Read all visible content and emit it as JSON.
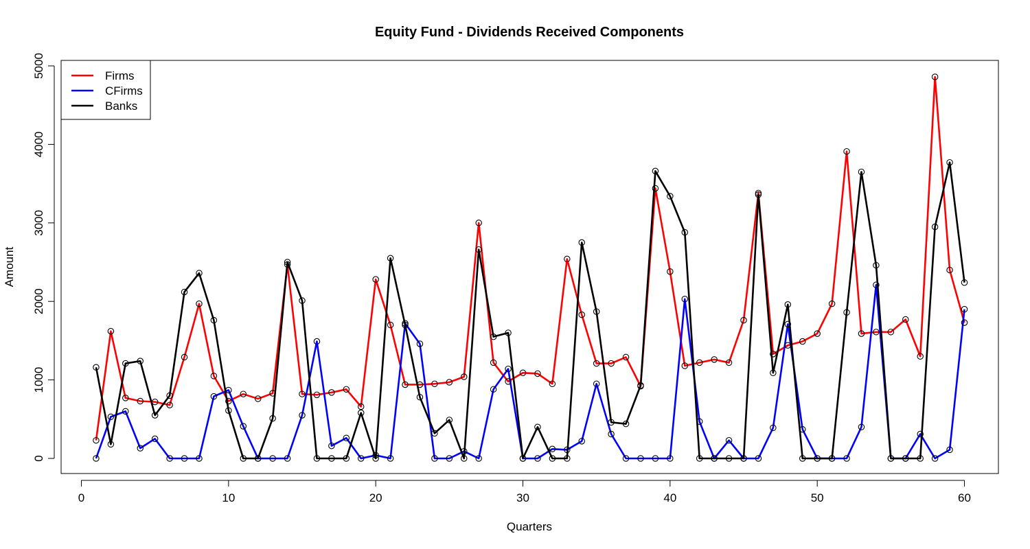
{
  "chart_data": {
    "type": "line",
    "title": "Equity Fund - Dividends Received Components",
    "xlabel": "Quarters",
    "ylabel": "Amount",
    "xlim": [
      0,
      62
    ],
    "ylim": [
      -200,
      5100
    ],
    "xticks": [
      0,
      10,
      20,
      30,
      40,
      50,
      60
    ],
    "yticks": [
      0,
      1000,
      2000,
      3000,
      4000,
      5000
    ],
    "grid": false,
    "legend_position": "top-left",
    "x": [
      1,
      2,
      3,
      4,
      5,
      6,
      7,
      8,
      9,
      10,
      11,
      12,
      13,
      14,
      15,
      16,
      17,
      18,
      19,
      20,
      21,
      22,
      23,
      24,
      25,
      26,
      27,
      28,
      29,
      30,
      31,
      32,
      33,
      34,
      35,
      36,
      37,
      38,
      39,
      40,
      41,
      42,
      43,
      44,
      45,
      46,
      47,
      48,
      49,
      50,
      51,
      52,
      53,
      54,
      55,
      56,
      57,
      58,
      59,
      60
    ],
    "series": [
      {
        "name": "Firms",
        "color": "#ff0000",
        "values": [
          230,
          1620,
          770,
          730,
          720,
          680,
          1290,
          1970,
          1050,
          730,
          820,
          760,
          830,
          2470,
          820,
          810,
          840,
          880,
          660,
          2280,
          1700,
          940,
          940,
          950,
          970,
          1040,
          3000,
          1220,
          980,
          1090,
          1080,
          950,
          2540,
          1830,
          1210,
          1210,
          1290,
          920,
          3440,
          2380,
          1180,
          1220,
          1260,
          1220,
          1760,
          3380,
          1330,
          1440,
          1490,
          1590,
          1970,
          3910,
          1590,
          1610,
          1610,
          1770,
          1300,
          4860,
          2400,
          1730
        ]
      },
      {
        "name": "CFirms",
        "color": "#0000ff",
        "values": [
          0,
          530,
          600,
          130,
          250,
          0,
          0,
          0,
          790,
          870,
          410,
          0,
          0,
          0,
          550,
          1490,
          160,
          260,
          0,
          40,
          0,
          1720,
          1460,
          0,
          0,
          90,
          0,
          880,
          1140,
          0,
          0,
          120,
          110,
          220,
          950,
          310,
          0,
          0,
          0,
          0,
          2030,
          470,
          0,
          230,
          0,
          0,
          390,
          1710,
          370,
          0,
          0,
          0,
          400,
          2210,
          0,
          0,
          310,
          0,
          110,
          1900
        ]
      },
      {
        "name": "Banks",
        "color": "#000000",
        "values": [
          1160,
          180,
          1210,
          1240,
          550,
          800,
          2120,
          2360,
          1760,
          610,
          0,
          0,
          510,
          2500,
          2010,
          0,
          0,
          0,
          580,
          0,
          2550,
          1700,
          780,
          320,
          490,
          0,
          2660,
          1550,
          1600,
          0,
          400,
          0,
          0,
          2750,
          1870,
          460,
          440,
          930,
          3660,
          3340,
          2880,
          0,
          0,
          0,
          0,
          3360,
          1090,
          1960,
          0,
          0,
          0,
          1860,
          3650,
          2460,
          0,
          0,
          0,
          2950,
          3770,
          2240
        ]
      }
    ]
  }
}
